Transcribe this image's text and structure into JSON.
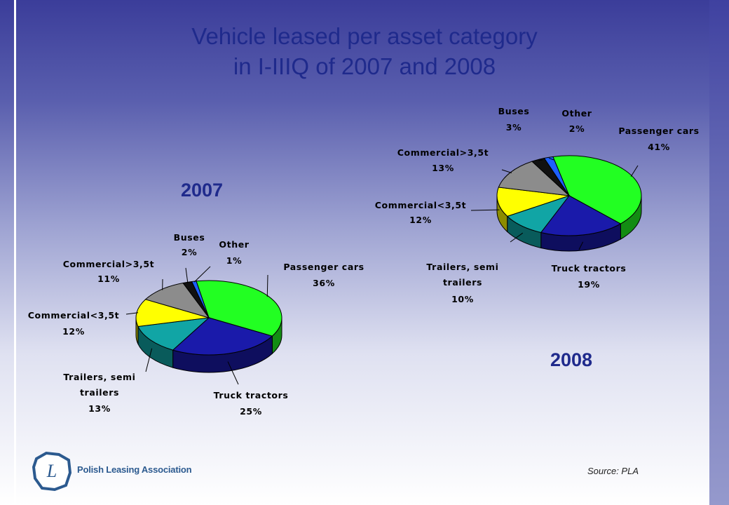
{
  "title_line1": "Vehicle leased per asset category",
  "title_line2": "in I-IIIQ of 2007 and 2008",
  "source": "Source: PLA",
  "logo": {
    "text": "Polish Leasing Association",
    "mark": "L"
  },
  "chart_data": [
    {
      "type": "pie",
      "title": "2007",
      "slices": [
        {
          "label": "Passenger cars",
          "value": 36,
          "value_label": "36%",
          "color": "#22ff22"
        },
        {
          "label": "Truck tractors",
          "value": 25,
          "value_label": "25%",
          "color": "#1a1aaa"
        },
        {
          "label": "Trailers, semi trailers",
          "label_lines": [
            "Trailers, semi",
            "trailers"
          ],
          "value": 13,
          "value_label": "13%",
          "color": "#11a5a5"
        },
        {
          "label": "Commercial<3,5t",
          "value": 12,
          "value_label": "12%",
          "color": "#ffff00"
        },
        {
          "label": "Commercial>3,5t",
          "value": 11,
          "value_label": "11%",
          "color": "#8c8c8c"
        },
        {
          "label": "Buses",
          "value": 2,
          "value_label": "2%",
          "color": "#111111"
        },
        {
          "label": "Other",
          "value": 1,
          "value_label": "1%",
          "color": "#1e60ff"
        }
      ]
    },
    {
      "type": "pie",
      "title": "2008",
      "slices": [
        {
          "label": "Passenger cars",
          "value": 41,
          "value_label": "41%",
          "color": "#22ff22"
        },
        {
          "label": "Truck tractors",
          "value": 19,
          "value_label": "19%",
          "color": "#1a1aaa"
        },
        {
          "label": "Trailers, semi trailers",
          "label_lines": [
            "Trailers, semi",
            "trailers"
          ],
          "value": 10,
          "value_label": "10%",
          "color": "#11a5a5"
        },
        {
          "label": "Commercial<3,5t",
          "value": 12,
          "value_label": "12%",
          "color": "#ffff00"
        },
        {
          "label": "Commercial>3,5t",
          "value": 13,
          "value_label": "13%",
          "color": "#8c8c8c"
        },
        {
          "label": "Buses",
          "value": 3,
          "value_label": "3%",
          "color": "#111111"
        },
        {
          "label": "Other",
          "value": 2,
          "value_label": "2%",
          "color": "#1e60ff"
        }
      ]
    }
  ]
}
